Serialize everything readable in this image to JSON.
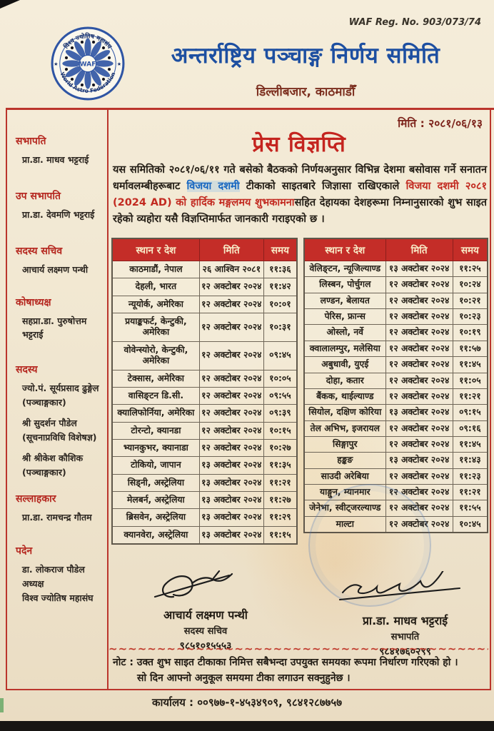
{
  "colors": {
    "brand_blue": "#1d4fa1",
    "accent_red": "#c4241f",
    "maroon": "#7c2f1f",
    "table_header_bg": "#c42d28",
    "table_header_text": "#f8ecc8"
  },
  "header": {
    "reg_no": "WAF Reg. No. 903/073/74",
    "org_name": "अन्तर्राष्ट्रिय पञ्चाङ्ग निर्णय समिति",
    "address": "डिल्लीबजार, काठमाडौँ",
    "logo": {
      "center": "WAF",
      "top_text": "विश्व ज्योतिष महासंघ",
      "bottom_text": "World Astro Federation"
    }
  },
  "sidebar": {
    "sections": [
      {
        "title": "सभापति",
        "lines": [
          "प्रा.डा. माधव भट्टराई"
        ]
      },
      {
        "title": "उप सभापति",
        "lines": [
          "प्रा.डा. देवमणि भट्टराई"
        ]
      },
      {
        "title": "सदस्य सचिव",
        "lines": [
          "आचार्य लक्ष्मण पन्थी"
        ]
      },
      {
        "title": "कोषाध्यक्ष",
        "lines": [
          "सहप्रा.डा. पुरुषोत्तम भट्टराई"
        ]
      },
      {
        "title": "सदस्य",
        "lines": [
          "ज्यो.पं. सूर्यप्रसाद ढुङ्गेल",
          "(पञ्चाङ्गकार)",
          "श्री सुदर्शन पौडेल",
          "(सूचनाप्रविधि विशेषज्ञ)",
          "श्री श्रीकेश कौशिक",
          "(पञ्चाङ्गकार)"
        ]
      },
      {
        "title": "सल्लाहकार",
        "lines": [
          "प्रा.डा. रामचन्द्र गौतम"
        ]
      },
      {
        "title": "पदेन",
        "lines": [
          "डा. लोकराज पौडेल",
          "अध्यक्ष",
          "विश्व ज्योतिष महासंघ"
        ]
      }
    ]
  },
  "main": {
    "date_line": "मिति : २०८१/०६/१३",
    "title": "प्रेस विज्ञप्ति",
    "paragraph": {
      "part1": "यस समितिको २०८१/०६/११ गते बसेको बैठकको निर्णयअनुसार विभिन्न देशमा बसोवास गर्ने सनातन धर्मावलम्बीहरूबाट ",
      "highlight_blue": "विजया दशमी",
      "part2": " टीकाको साइतबारे जिज्ञासा राखिएकाले ",
      "highlight_red": "विजया दशमी २०८१ (2024 AD) को हार्दिक मङ्गलमय शुभकामना",
      "part3": "सहित देहायका देशहरूमा निम्नानुसारको शुभ साइत रहेको व्यहोरा यसै विज्ञप्तिमार्फत जानकारी गराइएको छ ।"
    },
    "tables": {
      "headers": [
        "स्थान र देश",
        "मिति",
        "समय"
      ],
      "left_rows": [
        [
          "काठमाडौं, नेपाल",
          "२६ आश्विन २०८१",
          "११:३६"
        ],
        [
          "देहली, भारत",
          "१२ अक्टोबर २०२४",
          "११:४२"
        ],
        [
          "न्यूयोर्क, अमेरिका",
          "१२ अक्टोबर २०२४",
          "१०:०१"
        ],
        [
          "प्रयाङ्कफर्ट, केन्टुकी, अमेरिका",
          "१२ अक्टोबर २०२४",
          "१०:३१"
        ],
        [
          "वोवेन्स्योरो, केन्टुकी, अमेरिका",
          "१२ अक्टोबर २०२४",
          "०९:४५"
        ],
        [
          "टेक्सास, अमेरिका",
          "१२ अक्टोबर २०२४",
          "१०:०५"
        ],
        [
          "वासिङ्टन डि.सी.",
          "१२ अक्टोबर २०२४",
          "०९:५५"
        ],
        [
          "क्यालिफोर्निया, अमेरिका",
          "१२ अक्टोबर २०२४",
          "०९:३९"
        ],
        [
          "टोरन्टो, क्यानडा",
          "१२ अक्टोबर २०२४",
          "१०:१५"
        ],
        [
          "भ्यानकुभर, क्यानाडा",
          "१२ अक्टोबर २०२४",
          "१०:२७"
        ],
        [
          "टोकियो, जापान",
          "१३ अक्टोबर २०२४",
          "११:३५"
        ],
        [
          "सिड्नी, अस्ट्रेलिया",
          "१३ अक्टोबर २०२४",
          "११:२१"
        ],
        [
          "मेलबर्न, अस्ट्रेलिया",
          "१३ अक्टोबर २०२४",
          "११:२७"
        ],
        [
          "ब्रिसवेन, अस्ट्रेलिया",
          "१३ अक्टोबर २०२४",
          "११:२९"
        ],
        [
          "क्यानवेरा, अस्ट्रेलिया",
          "१३ अक्टोबर २०२४",
          "११:१५"
        ]
      ],
      "right_rows": [
        [
          "वेलिङ्टन, न्यूजिल्याण्ड",
          "१३ अक्टोबर २०२४",
          "११:२५"
        ],
        [
          "लिस्बन, पोर्चुगल",
          "१२ अक्टोबर २०२४",
          "१०:२४"
        ],
        [
          "लण्डन, बेलायत",
          "१२ अक्टोबर २०२४",
          "१०:२१"
        ],
        [
          "पेरिस, फ्रान्स",
          "१२ अक्टोबर २०२४",
          "१०:२३"
        ],
        [
          "ओस्लो, नर्वे",
          "१२ अक्टोबर २०२४",
          "१०:१९"
        ],
        [
          "क्वालालम्पुर, मलेसिया",
          "१२ अक्टोबर २०२४",
          "११:५७"
        ],
        [
          "अबुधावी, युएई",
          "१२ अक्टोबर २०२४",
          "११:४५"
        ],
        [
          "दोहा, कतार",
          "१२ अक्टोबर २०२४",
          "११:०५"
        ],
        [
          "बैंकक, थाईल्याण्ड",
          "१२ अक्टोबर २०२४",
          "११:२१"
        ],
        [
          "सियोल, दक्षिण कोरिया",
          "१३ अक्टोबर २०२४",
          "०९:१५"
        ],
        [
          "तेल अभिभ, इजरायल",
          "१२ अक्टोबर २०२४",
          "०९:१६"
        ],
        [
          "सिङ्गापुर",
          "१२ अक्टोबर २०२४",
          "११:४५"
        ],
        [
          "हङ्कङ",
          "१३ अक्टोबर २०२४",
          "११:४३"
        ],
        [
          "साउदी अरेबिया",
          "१२ अक्टोबर २०२४",
          "११:२३"
        ],
        [
          "याङ्गुन, म्यानमार",
          "१२ अक्टोबर २०२४",
          "११:२१"
        ],
        [
          "जेनेभा, स्वीट्जरल्याण्ड",
          "१२ अक्टोबर २०२४",
          "११:५५"
        ],
        [
          "माल्टा",
          "१२ अक्टोबर २०२४",
          "१०:४५"
        ]
      ]
    },
    "signatures": {
      "left": {
        "name": "आचार्य लक्ष्मण पन्थी",
        "role": "सदस्य सचिव",
        "phone": "९८५१०१५५५३"
      },
      "right": {
        "name": "प्रा.डा. माधव भट्टराई",
        "role": "सभापति",
        "phone": "९८४१७६०२९९"
      }
    },
    "note": {
      "line1": "नोट : उक्त शुभ साइत टीकाका निमित्त सबैभन्दा उपयुक्त समयका रूपमा निर्धारण गरिएको हो ।",
      "line2": "सो दिन आफ्नो अनुकूल समयमा टीका लगाउन सक्नुहुनेछ ।"
    },
    "footer": "कार्यालय : ००९७७-१-४५३४९०९, ९८४१२८७७५७"
  }
}
